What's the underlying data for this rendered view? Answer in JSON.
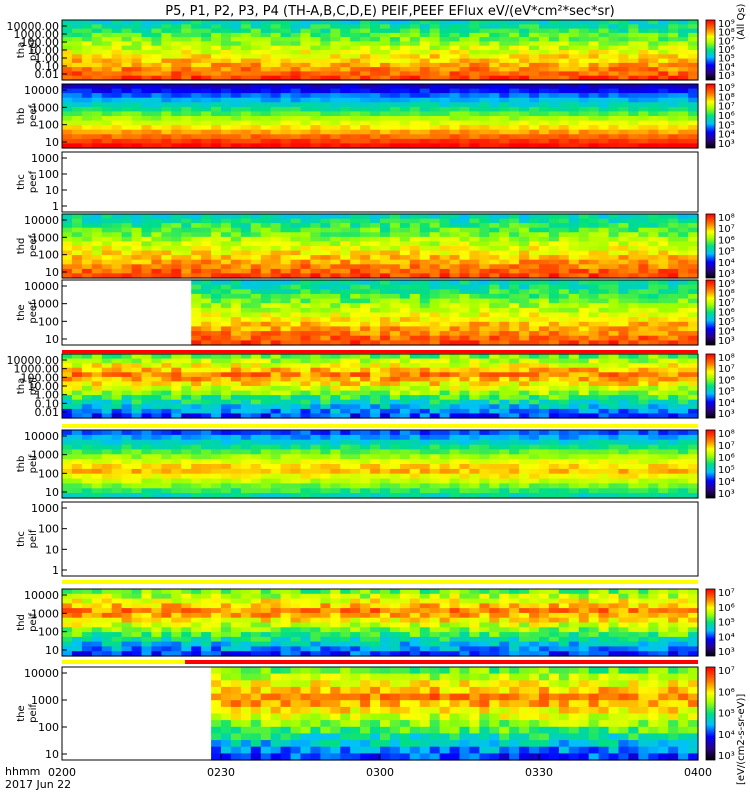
{
  "chart_data": {
    "type": "heatmap",
    "title": "P5, P1, P2, P3, P4 (TH-A,B,C,D,E) PEIF,PEEF EFlux eV/(eV*cm²*sec*sr)",
    "x_label": "hhmm",
    "date_label": "2017 Jun 22",
    "x_ticks": [
      "0200",
      "0230",
      "0300",
      "0330",
      "0400"
    ],
    "x_range": [
      "02:00",
      "04:00"
    ],
    "colorbar_units": "[eV/(cm2-s-sr-eV)]",
    "colorbar_side_label": "(All Qs)",
    "panels": [
      {
        "label": "tha peef",
        "yticks": [
          "10000.00",
          "1000.00",
          "100.00",
          "10.00",
          "1.00",
          "0.10",
          "0.01"
        ],
        "ylim": [
          0.01,
          20000
        ],
        "log": true,
        "cb_ticks": [
          "10⁹",
          "10⁸",
          "10⁷",
          "10⁶",
          "10⁵",
          "10⁴",
          "10³"
        ],
        "blank": false
      },
      {
        "label": "thb peef",
        "yticks": [
          "10000",
          "1000",
          "100",
          "10"
        ],
        "ylim": [
          10,
          20000
        ],
        "log": true,
        "cb_ticks": [
          "10⁹",
          "10⁸",
          "10⁷",
          "10⁶",
          "10⁵",
          "10⁴",
          "10³"
        ],
        "blank": false
      },
      {
        "label": "thc peef",
        "yticks": [
          "1000",
          "100",
          "10",
          "1"
        ],
        "ylim": [
          1,
          1000
        ],
        "log": true,
        "cb_ticks": [],
        "blank": true
      },
      {
        "label": "thd peef",
        "yticks": [
          "10000",
          "1000",
          "100",
          "10"
        ],
        "ylim": [
          8,
          20000
        ],
        "log": true,
        "cb_ticks": [
          "10⁸",
          "10⁷",
          "10⁶",
          "10⁵",
          "10⁴",
          "10³"
        ],
        "blank": false
      },
      {
        "label": "the peef",
        "yticks": [
          "10000",
          "1000",
          "100",
          "10"
        ],
        "ylim": [
          5,
          20000
        ],
        "log": true,
        "cb_ticks": [
          "10⁹",
          "10⁸",
          "10⁷",
          "10⁶",
          "10⁵",
          "10⁴",
          "10³"
        ],
        "blank": false
      },
      {
        "label": "tha peif",
        "yticks": [
          "10000.00",
          "1000.00",
          "100.00",
          "10.00",
          "1.00",
          "0.10",
          "0.01"
        ],
        "ylim": [
          0.01,
          20000
        ],
        "log": true,
        "cb_ticks": [
          "10⁸",
          "10⁷",
          "10⁶",
          "10⁵",
          "10⁴",
          "10³"
        ],
        "blank": false
      },
      {
        "label": "thb peif",
        "yticks": [
          "10000",
          "1000",
          "100",
          "10"
        ],
        "ylim": [
          8,
          20000
        ],
        "log": true,
        "cb_ticks": [
          "10⁸",
          "10⁷",
          "10⁶",
          "10⁵",
          "10⁴",
          "10³"
        ],
        "blank": false
      },
      {
        "label": "thc peif",
        "yticks": [
          "1000",
          "100",
          "10",
          "1"
        ],
        "ylim": [
          1,
          1000
        ],
        "log": true,
        "cb_ticks": [],
        "blank": true
      },
      {
        "label": "thd peif",
        "yticks": [
          "10000",
          "1000",
          "100",
          "10"
        ],
        "ylim": [
          5,
          20000
        ],
        "log": true,
        "cb_ticks": [
          "10⁷",
          "10⁶",
          "10⁵",
          "10⁴",
          "10³"
        ],
        "blank": false
      },
      {
        "label": "the peif",
        "yticks": [
          "10000",
          "1000",
          "100",
          "10"
        ],
        "ylim": [
          5,
          20000
        ],
        "log": true,
        "cb_ticks": [
          "10⁷",
          "10⁶",
          "10⁵",
          "10⁴",
          "10³"
        ],
        "blank": false
      }
    ]
  }
}
